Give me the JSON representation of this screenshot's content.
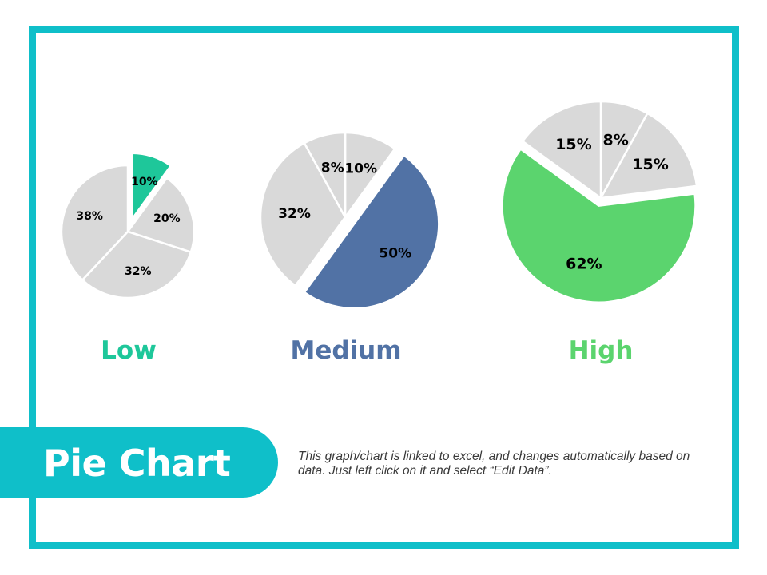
{
  "slide": {
    "title": "Pie Chart",
    "note": "This graph/chart is linked to excel, and changes automatically based on data. Just left click on it and select “Edit Data”.",
    "accent_color": "#0fbfc9"
  },
  "chart_data": [
    {
      "type": "pie",
      "title": "Low",
      "title_color": "#1ec79a",
      "values": [
        10,
        20,
        32,
        38
      ],
      "labels": [
        "10%",
        "20%",
        "32%",
        "38%"
      ],
      "colors": [
        "#1ec79a",
        "#d9d9d9",
        "#d9d9d9",
        "#d9d9d9"
      ],
      "exploded": [
        0
      ]
    },
    {
      "type": "pie",
      "title": "Medium",
      "title_color": "#5172a5",
      "values": [
        10,
        50,
        32,
        8
      ],
      "labels": [
        "10%",
        "50%",
        "32%",
        "8%"
      ],
      "colors": [
        "#d9d9d9",
        "#5172a5",
        "#d9d9d9",
        "#d9d9d9"
      ],
      "exploded": [
        1
      ]
    },
    {
      "type": "pie",
      "title": "High",
      "title_color": "#5bd46e",
      "values": [
        8,
        15,
        62,
        15
      ],
      "labels": [
        "8%",
        "15%",
        "62%",
        "15%"
      ],
      "colors": [
        "#d9d9d9",
        "#d9d9d9",
        "#5bd46e",
        "#d9d9d9"
      ],
      "exploded": [
        2
      ]
    }
  ]
}
